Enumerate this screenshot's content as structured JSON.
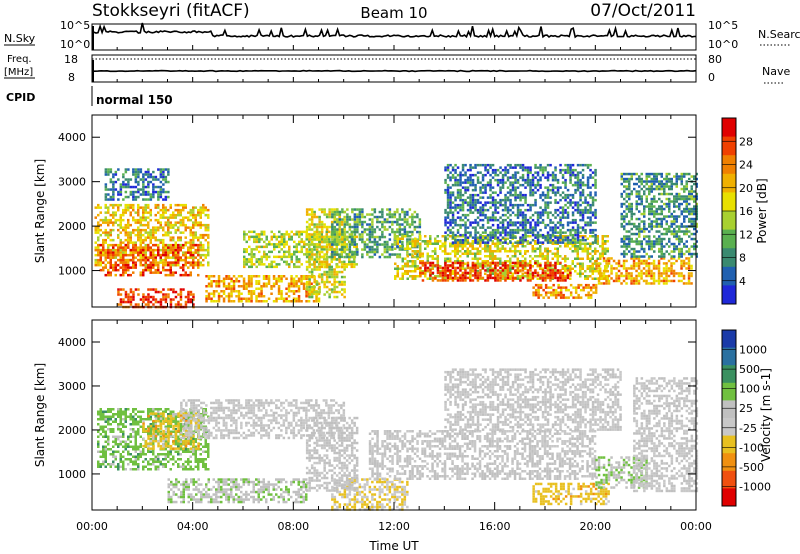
{
  "header": {
    "title_left": "Stokkseyri (fitACF)",
    "title_center": "Beam 10",
    "title_right": "07/Oct/2011"
  },
  "top_panels": {
    "nsky_label": "N.Sky",
    "nsearch_label": "N.Search",
    "nsky_ticks": [
      "10^5",
      "10^0"
    ],
    "nsearch_ticks": [
      "10^5",
      "10^0"
    ],
    "freq_label_1": "Freq.",
    "freq_label_2": "[MHz]",
    "freq_ticks": [
      "18",
      "8"
    ],
    "nave_label": "Nave",
    "nave_ticks": [
      "80",
      "0"
    ],
    "cpid_label": "CPID",
    "cpid_value": "normal 150"
  },
  "colors": {
    "power_scale": [
      "#1f28d8",
      "#2060b0",
      "#3a8a70",
      "#5ab050",
      "#a8d030",
      "#e8e000",
      "#f0b000",
      "#f08000",
      "#f04000",
      "#e00000"
    ],
    "velocity_scale": [
      "#1a3aa8",
      "#2a70a0",
      "#3a9060",
      "#70c040",
      "#c0c0c0",
      "#c8c8c8",
      "#e8c020",
      "#f09010",
      "#f05010",
      "#e00000"
    ]
  },
  "chart_data": [
    {
      "type": "heatmap",
      "title": "",
      "xlabel": "",
      "ylabel": "Slant Range [km]",
      "x_ticks": [
        "00:00",
        "04:00",
        "08:00",
        "12:00",
        "16:00",
        "20:00",
        "00:00"
      ],
      "y_ticks": [
        "1000",
        "2000",
        "3000",
        "4000"
      ],
      "xlim_hours": [
        0,
        24
      ],
      "ylim_km": [
        180,
        4500
      ],
      "colorbar": {
        "label": "Power [dB]",
        "ticks": [
          "28",
          "24",
          "20",
          "16",
          "12",
          "8",
          "4"
        ],
        "range": [
          0,
          30
        ]
      },
      "echo_regions": [
        {
          "t0": 0.1,
          "t1": 4.6,
          "r0": 1100,
          "r1": 2500,
          "value": 18
        },
        {
          "t0": 0.2,
          "t1": 4.2,
          "r0": 900,
          "r1": 1600,
          "value": 24
        },
        {
          "t0": 0.5,
          "t1": 3.0,
          "r0": 2600,
          "r1": 3300,
          "value": 6
        },
        {
          "t0": 1.0,
          "t1": 4.0,
          "r0": 200,
          "r1": 600,
          "value": 26
        },
        {
          "t0": 4.5,
          "t1": 9.0,
          "r0": 300,
          "r1": 900,
          "value": 20
        },
        {
          "t0": 6.0,
          "t1": 10.5,
          "r0": 1100,
          "r1": 1900,
          "value": 14
        },
        {
          "t0": 8.5,
          "t1": 10.0,
          "r0": 400,
          "r1": 2400,
          "value": 16
        },
        {
          "t0": 9.5,
          "t1": 13.0,
          "r0": 1300,
          "r1": 2400,
          "value": 10
        },
        {
          "t0": 12.0,
          "t1": 20.5,
          "r0": 800,
          "r1": 1800,
          "value": 16
        },
        {
          "t0": 13.0,
          "t1": 19.0,
          "r0": 800,
          "r1": 1200,
          "value": 26
        },
        {
          "t0": 14.0,
          "t1": 20.0,
          "r0": 1600,
          "r1": 3400,
          "value": 6
        },
        {
          "t0": 17.5,
          "t1": 20.0,
          "r0": 400,
          "r1": 700,
          "value": 22
        },
        {
          "t0": 20.0,
          "t1": 23.8,
          "r0": 700,
          "r1": 1300,
          "value": 20
        },
        {
          "t0": 21.0,
          "t1": 24.0,
          "r0": 1300,
          "r1": 3200,
          "value": 8
        }
      ]
    },
    {
      "type": "heatmap",
      "title": "",
      "xlabel": "Time UT",
      "ylabel": "Slant Range [km]",
      "x_ticks": [
        "00:00",
        "04:00",
        "08:00",
        "12:00",
        "16:00",
        "20:00",
        "00:00"
      ],
      "y_ticks": [
        "1000",
        "2000",
        "3000",
        "4000"
      ],
      "xlim_hours": [
        0,
        24
      ],
      "ylim_km": [
        180,
        4500
      ],
      "colorbar": {
        "label": "Velocity [m s-1]",
        "ticks": [
          "1000",
          "500",
          "100",
          "25",
          "-25",
          "-100",
          "-500",
          "-1000"
        ],
        "range": [
          -1000,
          1000
        ]
      },
      "echo_regions": [
        {
          "t0": 0.2,
          "t1": 4.6,
          "r0": 1100,
          "r1": 2500,
          "value": 300
        },
        {
          "t0": 2.0,
          "t1": 4.2,
          "r0": 1600,
          "r1": 2400,
          "value": -300
        },
        {
          "t0": 3.5,
          "t1": 10.0,
          "r0": 1800,
          "r1": 2700,
          "value": 0
        },
        {
          "t0": 3.0,
          "t1": 8.5,
          "r0": 350,
          "r1": 900,
          "value": 150
        },
        {
          "t0": 9.5,
          "t1": 12.5,
          "r0": 200,
          "r1": 900,
          "value": -200
        },
        {
          "t0": 8.5,
          "t1": 10.5,
          "r0": 600,
          "r1": 2300,
          "value": 50
        },
        {
          "t0": 11.0,
          "t1": 20.0,
          "r0": 900,
          "r1": 2000,
          "value": 0
        },
        {
          "t0": 14.0,
          "t1": 21.0,
          "r0": 2000,
          "r1": 3400,
          "value": 0
        },
        {
          "t0": 17.5,
          "t1": 20.5,
          "r0": 300,
          "r1": 800,
          "value": -300
        },
        {
          "t0": 20.0,
          "t1": 22.0,
          "r0": 700,
          "r1": 1400,
          "value": 200
        },
        {
          "t0": 21.5,
          "t1": 24.0,
          "r0": 600,
          "r1": 3200,
          "value": 0
        }
      ]
    }
  ]
}
